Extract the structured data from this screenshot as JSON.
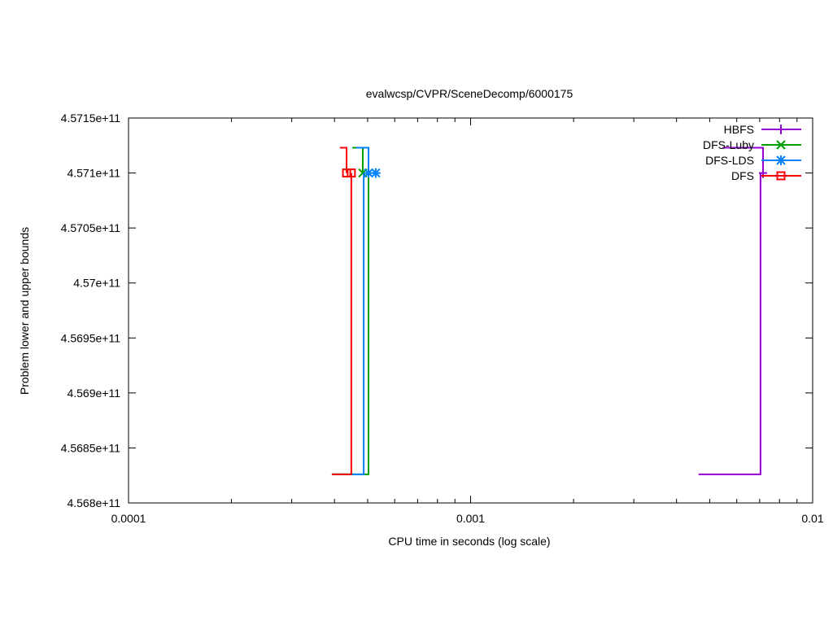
{
  "chart_data": {
    "type": "line",
    "title": "evalwcsp/CVPR/SceneDecomp/6000175",
    "xlabel": "CPU time in seconds (log scale)",
    "ylabel": "Problem lower and upper bounds",
    "xscale": "log",
    "xlim": [
      0.0001,
      0.01
    ],
    "ylim": [
      456800000000,
      457150000000
    ],
    "xticks": [
      {
        "v": 0.0001,
        "label": "0.0001"
      },
      {
        "v": 0.001,
        "label": "0.001"
      },
      {
        "v": 0.01,
        "label": "0.01"
      }
    ],
    "yticks": [
      {
        "v": 456800000000,
        "label": "4.568e+11"
      },
      {
        "v": 456850000000,
        "label": "4.5685e+11"
      },
      {
        "v": 456900000000,
        "label": "4.569e+11"
      },
      {
        "v": 456950000000,
        "label": "4.5695e+11"
      },
      {
        "v": 457000000000,
        "label": "4.57e+11"
      },
      {
        "v": 457050000000,
        "label": "4.5705e+11"
      },
      {
        "v": 457100000000,
        "label": "4.571e+11"
      },
      {
        "v": 457150000000,
        "label": "4.5715e+11"
      }
    ],
    "grid": false,
    "legend": "top-right",
    "series": [
      {
        "name": "HBFS",
        "color": "#9400d3",
        "marker": "plus",
        "upper": [
          [
            0.00545,
            457123000000
          ],
          [
            0.00716,
            457123000000
          ],
          [
            0.00716,
            457100000000
          ]
        ],
        "lower": [
          [
            0.00464,
            456826000000
          ],
          [
            0.00704,
            456826000000
          ],
          [
            0.00704,
            457100000000
          ]
        ],
        "points": [
          [
            0.00716,
            457100000000
          ]
        ]
      },
      {
        "name": "DFS-Luby",
        "color": "#009e00",
        "marker": "x",
        "upper": [
          [
            0.000451,
            457123000000
          ],
          [
            0.000484,
            457123000000
          ],
          [
            0.000484,
            457100000000
          ]
        ],
        "lower": [
          [
            0.000393,
            456826000000
          ],
          [
            0.000503,
            456826000000
          ],
          [
            0.000503,
            457100000000
          ]
        ],
        "points": [
          [
            0.000484,
            457100000000
          ]
        ]
      },
      {
        "name": "DFS-LDS",
        "color": "#0080ff",
        "marker": "star",
        "upper": [
          [
            0.000463,
            457123000000
          ],
          [
            0.000503,
            457123000000
          ],
          [
            0.000503,
            457100000000
          ]
        ],
        "lower": [
          [
            0.000393,
            456826000000
          ],
          [
            0.000487,
            456826000000
          ],
          [
            0.000487,
            457100000000
          ]
        ],
        "points": [
          [
            0.000503,
            457100000000
          ],
          [
            0.000528,
            457100000000
          ]
        ]
      },
      {
        "name": "DFS",
        "color": "#ff0000",
        "marker": "square",
        "upper": [
          [
            0.000415,
            457123000000
          ],
          [
            0.000434,
            457123000000
          ],
          [
            0.000434,
            457100000000
          ]
        ],
        "lower": [
          [
            0.000393,
            456826000000
          ],
          [
            0.000448,
            456826000000
          ],
          [
            0.000448,
            457100000000
          ]
        ],
        "points": [
          [
            0.000434,
            457100000000
          ],
          [
            0.000448,
            457100000000
          ]
        ]
      }
    ]
  }
}
